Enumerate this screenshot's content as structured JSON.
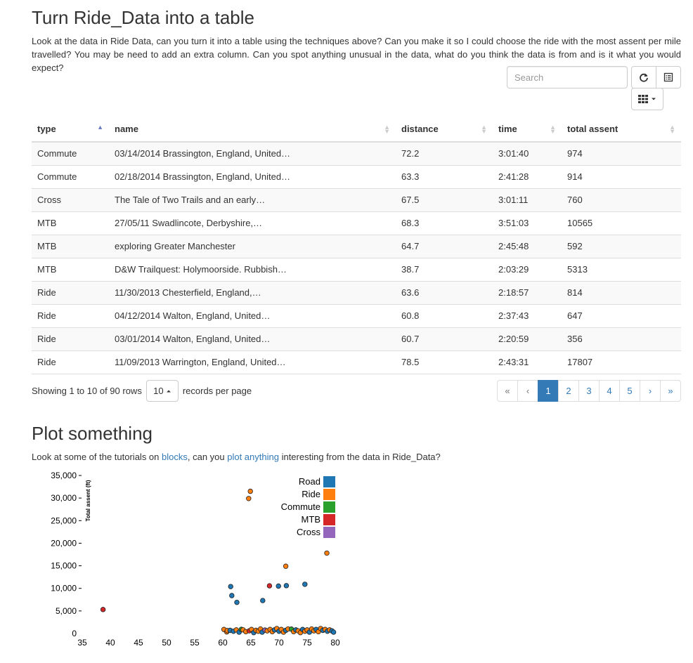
{
  "section1": {
    "title": "Turn Ride_Data into a table",
    "description": "Look at the data in Ride Data, can you turn it into a table using the techniques above? Can you make it so I could choose the ride with the most assent per mile travelled? You may be need to add an extra column. Can you spot anything unusual in the data, what do you think the data is from and is it what you would expect?"
  },
  "toolbar": {
    "search_placeholder": "Search",
    "refresh_icon": "refresh-icon",
    "toggle_icon": "list-alt-icon",
    "columns_icon": "th-grid-icon"
  },
  "table": {
    "columns": [
      "type",
      "name",
      "distance",
      "time",
      "total assent"
    ],
    "rows": [
      [
        "Commute",
        "03/14/2014 Brassington, England, United…",
        "72.2",
        "3:01:40",
        "974"
      ],
      [
        "Commute",
        "02/18/2014 Brassington, England, United…",
        "63.3",
        "2:41:28",
        "914"
      ],
      [
        "Cross",
        "The Tale of Two Trails and an early…",
        "67.5",
        "3:01:11",
        "760"
      ],
      [
        "MTB",
        "27/05/11 Swadlincote, Derbyshire,…",
        "68.3",
        "3:51:03",
        "10565"
      ],
      [
        "MTB",
        "exploring Greater Manchester",
        "64.7",
        "2:45:48",
        "592"
      ],
      [
        "MTB",
        "D&W Trailquest: Holymoorside. Rubbish…",
        "38.7",
        "2:03:29",
        "5313"
      ],
      [
        "Ride",
        "11/30/2013 Chesterfield, England,…",
        "63.6",
        "2:18:57",
        "814"
      ],
      [
        "Ride",
        "04/12/2014 Walton, England, United…",
        "60.8",
        "2:37:43",
        "647"
      ],
      [
        "Ride",
        "03/01/2014 Walton, England, United…",
        "60.7",
        "2:20:59",
        "356"
      ],
      [
        "Ride",
        "11/09/2013 Warrington, England, United…",
        "78.5",
        "2:43:31",
        "17807"
      ]
    ]
  },
  "pager": {
    "showing": "Showing 1 to 10 of 90 rows",
    "per_page_value": "10",
    "per_page_suffix": "records per page",
    "pages": [
      "«",
      "‹",
      "1",
      "2",
      "3",
      "4",
      "5",
      "›",
      "»"
    ],
    "active_page": "1"
  },
  "section2": {
    "title": "Plot something",
    "text_before": "Look at some of the tutorials on ",
    "link1": "blocks",
    "text_mid": ", can you ",
    "link2": "plot anything",
    "text_after": " interesting from the data in Ride_Data?"
  },
  "chart_data": {
    "type": "scatter",
    "ylabel": "Total assent (ft)",
    "xlabel": "",
    "xlim": [
      35,
      80
    ],
    "ylim": [
      0,
      35000
    ],
    "xticks": [
      "35",
      "40",
      "45",
      "50",
      "55",
      "60",
      "65",
      "70",
      "75",
      "80"
    ],
    "yticks": [
      "0",
      "5,000",
      "10,000",
      "15,000",
      "20,000",
      "25,000",
      "30,000",
      "35,000"
    ],
    "legend": [
      {
        "name": "Road",
        "color": "#1f77b4"
      },
      {
        "name": "Ride",
        "color": "#ff7f0e"
      },
      {
        "name": "Commute",
        "color": "#2ca02c"
      },
      {
        "name": "MTB",
        "color": "#d62728"
      },
      {
        "name": "Cross",
        "color": "#9467bd"
      }
    ],
    "points": [
      {
        "x": 64.9,
        "y": 31500,
        "type": "Ride"
      },
      {
        "x": 64.6,
        "y": 29900,
        "type": "Ride"
      },
      {
        "x": 78.5,
        "y": 17807,
        "type": "Ride"
      },
      {
        "x": 71.2,
        "y": 14900,
        "type": "Ride"
      },
      {
        "x": 74.6,
        "y": 10900,
        "type": "Road"
      },
      {
        "x": 71.3,
        "y": 10600,
        "type": "Road"
      },
      {
        "x": 69.9,
        "y": 10500,
        "type": "Road"
      },
      {
        "x": 68.3,
        "y": 10565,
        "type": "MTB"
      },
      {
        "x": 61.4,
        "y": 10400,
        "type": "Road"
      },
      {
        "x": 61.6,
        "y": 8400,
        "type": "Road"
      },
      {
        "x": 67.1,
        "y": 7300,
        "type": "Road"
      },
      {
        "x": 62.5,
        "y": 6900,
        "type": "Road"
      },
      {
        "x": 38.7,
        "y": 5313,
        "type": "MTB"
      },
      {
        "x": 60.2,
        "y": 900,
        "type": "Ride"
      },
      {
        "x": 60.7,
        "y": 356,
        "type": "Ride"
      },
      {
        "x": 60.8,
        "y": 647,
        "type": "Ride"
      },
      {
        "x": 61.3,
        "y": 700,
        "type": "Road"
      },
      {
        "x": 61.9,
        "y": 500,
        "type": "Road"
      },
      {
        "x": 62.4,
        "y": 800,
        "type": "Ride"
      },
      {
        "x": 62.9,
        "y": 300,
        "type": "Road"
      },
      {
        "x": 63.3,
        "y": 914,
        "type": "Commute"
      },
      {
        "x": 63.6,
        "y": 814,
        "type": "Ride"
      },
      {
        "x": 64.1,
        "y": 400,
        "type": "Ride"
      },
      {
        "x": 64.7,
        "y": 592,
        "type": "MTB"
      },
      {
        "x": 65.1,
        "y": 900,
        "type": "Ride"
      },
      {
        "x": 65.5,
        "y": 200,
        "type": "Road"
      },
      {
        "x": 65.9,
        "y": 700,
        "type": "Ride"
      },
      {
        "x": 66.3,
        "y": 500,
        "type": "Ride"
      },
      {
        "x": 66.7,
        "y": 1000,
        "type": "Ride"
      },
      {
        "x": 67.0,
        "y": 300,
        "type": "Road"
      },
      {
        "x": 67.5,
        "y": 760,
        "type": "Cross"
      },
      {
        "x": 67.9,
        "y": 600,
        "type": "Ride"
      },
      {
        "x": 68.4,
        "y": 900,
        "type": "Ride"
      },
      {
        "x": 68.8,
        "y": 400,
        "type": "Ride"
      },
      {
        "x": 69.2,
        "y": 800,
        "type": "Road"
      },
      {
        "x": 69.6,
        "y": 1100,
        "type": "Ride"
      },
      {
        "x": 70.0,
        "y": 500,
        "type": "Road"
      },
      {
        "x": 70.4,
        "y": 900,
        "type": "Ride"
      },
      {
        "x": 70.8,
        "y": 300,
        "type": "Ride"
      },
      {
        "x": 71.2,
        "y": 700,
        "type": "Road"
      },
      {
        "x": 71.6,
        "y": 1000,
        "type": "Ride"
      },
      {
        "x": 72.2,
        "y": 974,
        "type": "Commute"
      },
      {
        "x": 72.6,
        "y": 400,
        "type": "Ride"
      },
      {
        "x": 73.0,
        "y": 800,
        "type": "Road"
      },
      {
        "x": 73.4,
        "y": 600,
        "type": "Ride"
      },
      {
        "x": 73.8,
        "y": 200,
        "type": "Ride"
      },
      {
        "x": 74.2,
        "y": 900,
        "type": "Road"
      },
      {
        "x": 74.6,
        "y": 500,
        "type": "Ride"
      },
      {
        "x": 75.0,
        "y": 800,
        "type": "Ride"
      },
      {
        "x": 75.4,
        "y": 300,
        "type": "Road"
      },
      {
        "x": 75.8,
        "y": 1000,
        "type": "Ride"
      },
      {
        "x": 76.2,
        "y": 600,
        "type": "Ride"
      },
      {
        "x": 76.6,
        "y": 900,
        "type": "Road"
      },
      {
        "x": 77.0,
        "y": 400,
        "type": "Ride"
      },
      {
        "x": 77.4,
        "y": 1100,
        "type": "Ride"
      },
      {
        "x": 77.8,
        "y": 700,
        "type": "Road"
      },
      {
        "x": 78.2,
        "y": 900,
        "type": "Ride"
      },
      {
        "x": 78.6,
        "y": 500,
        "type": "Road"
      },
      {
        "x": 79.0,
        "y": 800,
        "type": "Ride"
      },
      {
        "x": 79.4,
        "y": 600,
        "type": "Road"
      },
      {
        "x": 79.7,
        "y": 300,
        "type": "Road"
      }
    ]
  }
}
